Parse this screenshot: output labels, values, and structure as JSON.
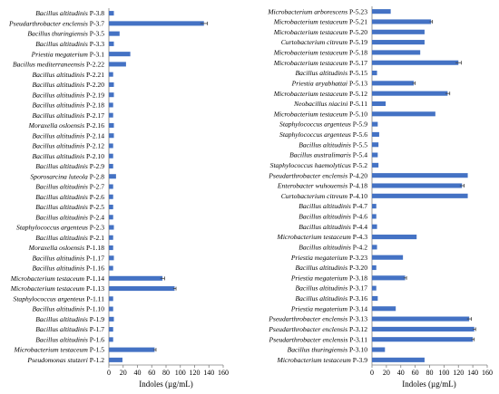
{
  "chart_data": [
    {
      "type": "bar",
      "orientation": "horizontal",
      "xlabel": "Indoles (µg/mL)",
      "xlim": [
        0,
        160
      ],
      "xticks": [
        0,
        20,
        40,
        60,
        80,
        100,
        120,
        140,
        160
      ],
      "grid": false,
      "categories": [
        {
          "species": "Bacillus altitudinis",
          "strain": "P-3.8"
        },
        {
          "species": "Pseudarthrobacter enclensis",
          "strain": "P-3.7"
        },
        {
          "species": "Bacillus thuringiensis",
          "strain": "P-3.5"
        },
        {
          "species": "Bacillus altitudinis",
          "strain": "P-3.3"
        },
        {
          "species": "Priestia megaterium",
          "strain": "P-3.1"
        },
        {
          "species": "Bacillus mediterraneensis",
          "strain": "P-2.22"
        },
        {
          "species": "Bacillus altitudinis",
          "strain": "P-2.21"
        },
        {
          "species": "Bacillus altitudinis",
          "strain": "P-2.20"
        },
        {
          "species": "Bacillus altitudinis",
          "strain": "P-2.19"
        },
        {
          "species": "Bacillus altitudinis",
          "strain": "P-2.18"
        },
        {
          "species": "Bacillus altitudinis",
          "strain": "P-2.17"
        },
        {
          "species": "Moraxella osloensis",
          "strain": "P-2.16"
        },
        {
          "species": "Bacillus altitudinis",
          "strain": "P-2.14"
        },
        {
          "species": "Bacillus altitudinis",
          "strain": "P-2.12"
        },
        {
          "species": "Bacillus altitudinis",
          "strain": "P-2.10"
        },
        {
          "species": "Bacillus altitudinis",
          "strain": "P-2.9"
        },
        {
          "species": "Sporosarcina luteola",
          "strain": "P-2.8"
        },
        {
          "species": "Bacillus altitudinis",
          "strain": "P-2.7"
        },
        {
          "species": "Bacillus altitudinis",
          "strain": "P-2.6"
        },
        {
          "species": "Bacillus altitudinis",
          "strain": "P-2.5"
        },
        {
          "species": "Bacillus altitudinis",
          "strain": "P-2.4"
        },
        {
          "species": "Staphylococcus argenteus",
          "strain": "P-2.3"
        },
        {
          "species": "Bacillus altitudinis",
          "strain": "P-2.1"
        },
        {
          "species": "Moraxella osloensis",
          "strain": "P-1.18"
        },
        {
          "species": "Bacillus altitudinis",
          "strain": "P-1.17"
        },
        {
          "species": "Bacillus altitudinis",
          "strain": "P-1.16"
        },
        {
          "species": "Microbacterium testaceum",
          "strain": "P-1.14"
        },
        {
          "species": "Microbacterium testaceum",
          "strain": "P-1.13"
        },
        {
          "species": "Staphylococcus argenteus",
          "strain": "P-1.11"
        },
        {
          "species": "Bacillus altitudinis",
          "strain": "P-1.10"
        },
        {
          "species": "Bacillus altitudinis",
          "strain": "P-1.9"
        },
        {
          "species": "Bacillus altitudinis",
          "strain": "P-1.7"
        },
        {
          "species": "Bacillus altitudinis",
          "strain": "P-1.6"
        },
        {
          "species": "Microbacterium testaceum",
          "strain": "P-1.5"
        },
        {
          "species": "Pseudomonas stutzeri",
          "strain": "P-1.2"
        }
      ],
      "values": [
        7,
        133,
        15,
        7,
        30,
        24,
        6,
        7,
        7,
        6,
        6,
        7,
        7,
        6,
        6,
        6,
        10,
        6,
        6,
        6,
        6,
        7,
        6,
        6,
        7,
        6,
        75,
        92,
        6,
        6,
        7,
        6,
        6,
        64,
        19
      ],
      "errors": [
        0,
        5,
        0,
        0,
        0,
        0,
        0,
        0,
        0,
        0,
        0,
        0,
        0,
        0,
        0,
        0,
        0,
        0,
        0,
        0,
        0,
        0,
        0,
        0,
        0,
        0,
        3,
        2,
        0,
        0,
        0,
        0,
        0,
        2,
        0
      ]
    },
    {
      "type": "bar",
      "orientation": "horizontal",
      "xlabel": "Indoles (µg/mL)",
      "xlim": [
        0,
        160
      ],
      "xticks": [
        0,
        20,
        40,
        60,
        80,
        100,
        120,
        140,
        160
      ],
      "grid": false,
      "categories": [
        {
          "species": "Microbacterium arborescens",
          "strain": "P-5.23"
        },
        {
          "species": "Microbacterium testaceum",
          "strain": "P-5.21"
        },
        {
          "species": "Microbacterium testaceum",
          "strain": "P-5.20"
        },
        {
          "species": "Curtobacterium citreum",
          "strain": "P-5.19"
        },
        {
          "species": "Microbacterium testaceum",
          "strain": "P-5.18"
        },
        {
          "species": "Microbacterium testaceum",
          "strain": "P-5.17"
        },
        {
          "species": "Bacillus altitudinis",
          "strain": "P-5.15"
        },
        {
          "species": "Priestia aryabhattai",
          "strain": "P-5.13"
        },
        {
          "species": "Microbacterium testaceum",
          "strain": "P-5.12"
        },
        {
          "species": "Neobacillus niacini",
          "strain": "P-5.11"
        },
        {
          "species": "Microbacterium testaceum",
          "strain": "P-5.10"
        },
        {
          "species": "Staphylococcus argenteus",
          "strain": "P-5.9"
        },
        {
          "species": "Staphylococcus argenteus",
          "strain": "P-5.6"
        },
        {
          "species": "Bacillus altitudinis",
          "strain": "P-5.5"
        },
        {
          "species": "Bacillus australimaris",
          "strain": "P-5.4"
        },
        {
          "species": "Staphylococcus haemolyticus",
          "strain": "P-5.2"
        },
        {
          "species": "Pseudarthrobacter enclensis",
          "strain": "P-4.20"
        },
        {
          "species": "Enterobacter wuhouensis",
          "strain": "P-4.18"
        },
        {
          "species": "Curtobacterium citreum",
          "strain": "P-4.10"
        },
        {
          "species": "Bacillus altitudinis",
          "strain": "P-4.7"
        },
        {
          "species": "Bacillus altitudinis",
          "strain": "P-4.6"
        },
        {
          "species": "Bacillus altitudinis",
          "strain": "P-4.4"
        },
        {
          "species": "Microbacterium testaceum",
          "strain": "P-4.3"
        },
        {
          "species": "Bacillus altitudinis",
          "strain": "P-4.2"
        },
        {
          "species": "Priestia megaterium",
          "strain": "P-3.23"
        },
        {
          "species": "Bacillus altitudinis",
          "strain": "P-3.20"
        },
        {
          "species": "Priestia megaterium",
          "strain": "P-3.18"
        },
        {
          "species": "Bacillus altitudinis",
          "strain": "P-3.17"
        },
        {
          "species": "Bacillus altitudinis",
          "strain": "P-3.16"
        },
        {
          "species": "Priestia megaterium",
          "strain": "P-3.14"
        },
        {
          "species": "Pseudarthrobacter enclensis",
          "strain": "P-3.13"
        },
        {
          "species": "Pseudarthrobacter enclensis",
          "strain": "P-3.12"
        },
        {
          "species": "Pseudarthrobacter enclensis",
          "strain": "P-3.11"
        },
        {
          "species": "Bacillus thuringiensis",
          "strain": "P-3.10"
        },
        {
          "species": "Microbacterium testaceum",
          "strain": "P-3.9"
        }
      ],
      "values": [
        26,
        82,
        73,
        73,
        67,
        120,
        7,
        58,
        105,
        19,
        88,
        8,
        10,
        9,
        8,
        9,
        133,
        125,
        133,
        6,
        6,
        7,
        62,
        7,
        43,
        6,
        46,
        6,
        8,
        33,
        135,
        142,
        140,
        18,
        73
      ],
      "errors": [
        0,
        2,
        0,
        0,
        0,
        4,
        0,
        2,
        3,
        0,
        0,
        0,
        0,
        0,
        0,
        0,
        0,
        3,
        0,
        0,
        0,
        0,
        0,
        0,
        0,
        0,
        2,
        0,
        0,
        0,
        3,
        2,
        2,
        0,
        0
      ]
    }
  ]
}
